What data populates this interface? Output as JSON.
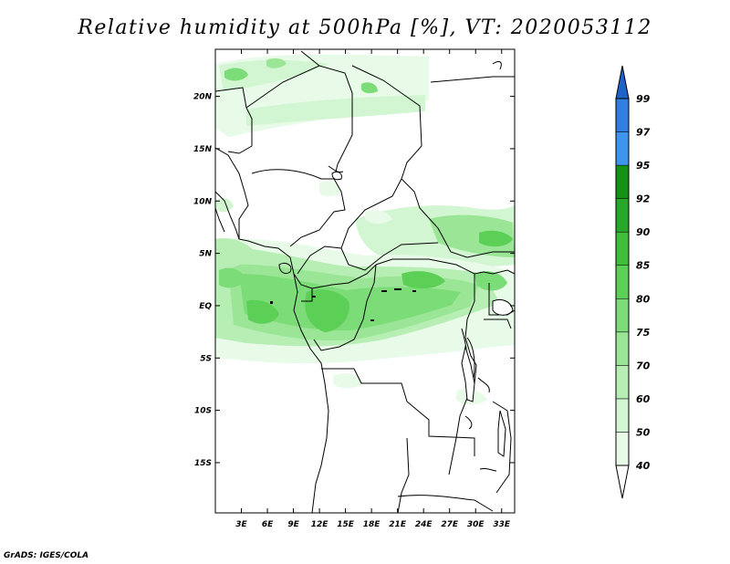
{
  "title": "Relative humidity at 500hPa [%], VT: 2020053112",
  "credit": "GrADS: IGES/COLA",
  "map": {
    "lat_labels": [
      "20N",
      "15N",
      "10N",
      "5N",
      "EQ",
      "5S",
      "10S",
      "15S"
    ],
    "lon_labels": [
      "3E",
      "6E",
      "9E",
      "12E",
      "15E",
      "18E",
      "21E",
      "24E",
      "27E",
      "30E",
      "33E"
    ],
    "lat_values": [
      20,
      15,
      10,
      5,
      0,
      -5,
      -10,
      -15
    ],
    "lon_values": [
      3,
      6,
      9,
      12,
      15,
      18,
      21,
      24,
      27,
      30,
      33
    ],
    "lon_range": [
      0,
      34.5
    ],
    "lat_range": [
      -19.8,
      24.5
    ]
  },
  "colorbar": {
    "labels": [
      "40",
      "50",
      "60",
      "70",
      "75",
      "80",
      "85",
      "90",
      "92",
      "95",
      "97",
      "99"
    ],
    "colors": [
      "#ffffff",
      "#e8fae8",
      "#d2f5d2",
      "#b6eeb4",
      "#9ae696",
      "#7cdc78",
      "#5ccf56",
      "#3fbe3a",
      "#28a828",
      "#149214",
      "#3e95ee",
      "#2f7ee0",
      "#1f63c8"
    ]
  },
  "colors": {
    "border": "#000000",
    "land_line": "#000000"
  }
}
